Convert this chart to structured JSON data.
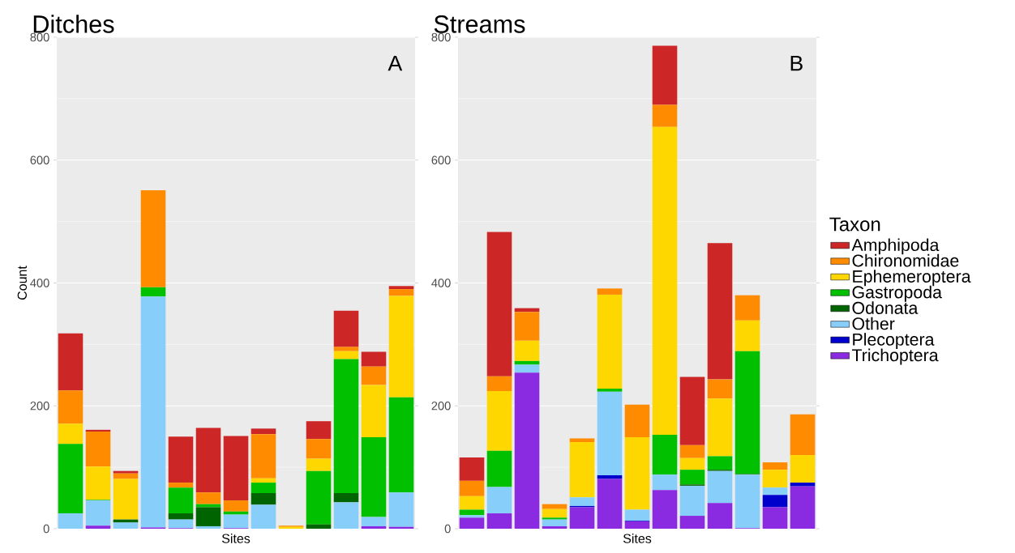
{
  "chart_data": [
    {
      "type": "bar",
      "title": "Ditches",
      "xlabel": "Sites",
      "ylabel": "Count",
      "annotations": [
        "A"
      ],
      "stacked": true,
      "grid": "y",
      "tick_labels": "y",
      "legend": false,
      "categories": [
        null,
        null,
        null,
        null,
        null,
        null,
        null,
        null,
        null,
        null,
        null,
        null,
        null
      ],
      "ylim": [
        0,
        800
      ],
      "yticks": [
        0,
        200,
        400,
        600,
        800
      ],
      "series": [
        {
          "color": "#8a2be2",
          "values": [
            0,
            5,
            0,
            2,
            1,
            0,
            1,
            0,
            0,
            0,
            0,
            4,
            3
          ]
        },
        {
          "color": "#87cefa",
          "values": [
            25,
            41,
            10,
            376,
            14,
            4,
            22,
            39,
            0,
            0,
            43,
            15,
            56
          ]
        },
        {
          "color": "#006400",
          "values": [
            0,
            0,
            5,
            0,
            10,
            31,
            0,
            19,
            0,
            7,
            15,
            0,
            0
          ]
        },
        {
          "color": "#00c000",
          "values": [
            113,
            1,
            0,
            15,
            42,
            5,
            5,
            17,
            0,
            87,
            218,
            130,
            155
          ]
        },
        {
          "color": "#ffd700",
          "values": [
            33,
            54,
            66,
            0,
            0,
            0,
            0,
            7,
            3,
            20,
            13,
            85,
            165
          ]
        },
        {
          "color": "#ff8c00",
          "values": [
            54,
            57,
            9,
            158,
            8,
            19,
            18,
            72,
            2,
            32,
            7,
            30,
            11
          ]
        },
        {
          "color": "#cc2626",
          "values": [
            93,
            3,
            4,
            0,
            75,
            105,
            105,
            9,
            0,
            29,
            59,
            24,
            5
          ]
        }
      ]
    },
    {
      "type": "bar",
      "title": "Streams",
      "xlabel": "Sites",
      "annotations": [
        "B"
      ],
      "stacked": true,
      "grid": "y",
      "tick_labels": "y",
      "legend": "right",
      "legend_title": "Taxon",
      "categories": [
        null,
        null,
        null,
        null,
        null,
        null,
        null,
        null,
        null,
        null,
        null,
        null,
        null
      ],
      "ylim": [
        0,
        800
      ],
      "yticks": [
        0,
        200,
        400,
        600,
        800
      ],
      "series": [
        {
          "name": "Trichoptera",
          "color": "#8a2be2",
          "values": [
            18,
            25,
            254,
            4,
            35,
            81,
            12,
            63,
            21,
            42,
            1,
            35,
            69
          ]
        },
        {
          "name": "Plecoptera",
          "color": "#0000cd",
          "values": [
            0,
            0,
            0,
            0,
            2,
            6,
            1,
            0,
            0,
            0,
            0,
            20,
            6
          ]
        },
        {
          "name": "Other",
          "color": "#87cefa",
          "values": [
            4,
            43,
            13,
            11,
            14,
            136,
            18,
            25,
            49,
            52,
            87,
            12,
            0
          ]
        },
        {
          "name": "Odonata",
          "color": "#006400",
          "values": [
            0,
            0,
            0,
            0,
            0,
            0,
            0,
            0,
            2,
            2,
            1,
            0,
            0
          ]
        },
        {
          "name": "Gastropoda",
          "color": "#00c000",
          "values": [
            9,
            59,
            6,
            3,
            0,
            5,
            0,
            65,
            24,
            22,
            200,
            0,
            0
          ]
        },
        {
          "name": "Ephemeroptera",
          "color": "#ffd700",
          "values": [
            22,
            97,
            33,
            14,
            90,
            153,
            118,
            501,
            19,
            94,
            50,
            29,
            45
          ]
        },
        {
          "name": "Chironomidae",
          "color": "#ff8c00",
          "values": [
            25,
            24,
            47,
            8,
            6,
            10,
            53,
            36,
            21,
            31,
            41,
            12,
            66
          ]
        },
        {
          "name": "Amphipoda",
          "color": "#cc2626",
          "values": [
            38,
            235,
            6,
            0,
            0,
            0,
            0,
            96,
            111,
            222,
            0,
            0,
            0
          ]
        }
      ]
    }
  ]
}
